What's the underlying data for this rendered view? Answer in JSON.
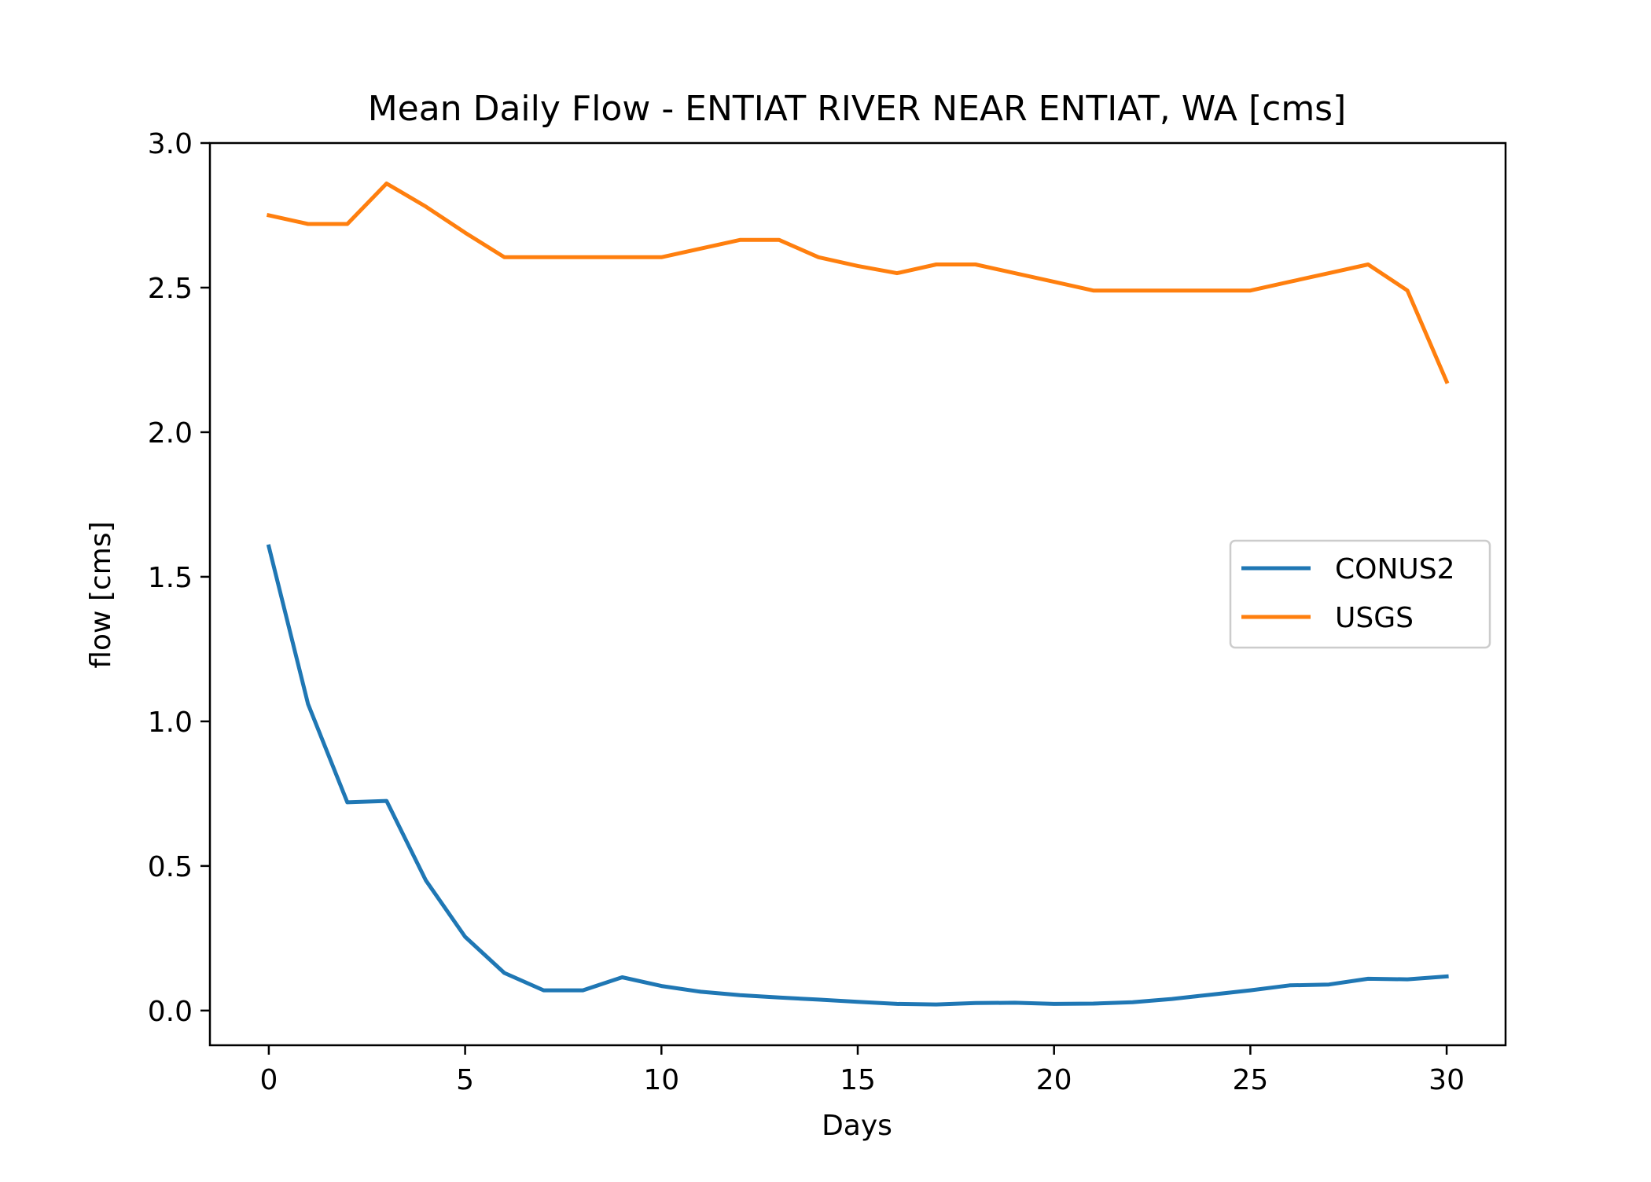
{
  "chart_data": {
    "type": "line",
    "title": "Mean Daily Flow - ENTIAT RIVER NEAR ENTIAT, WA [cms]",
    "xlabel": "Days",
    "ylabel": "flow [cms]",
    "xlim": [
      -1.5,
      31.5
    ],
    "ylim": [
      -0.12,
      3.0
    ],
    "xticks": [
      0,
      5,
      10,
      15,
      20,
      25,
      30
    ],
    "xtick_labels": [
      "0",
      "5",
      "10",
      "15",
      "20",
      "25",
      "30"
    ],
    "yticks": [
      0.0,
      0.5,
      1.0,
      1.5,
      2.0,
      2.5,
      3.0
    ],
    "ytick_labels": [
      "0.0",
      "0.5",
      "1.0",
      "1.5",
      "2.0",
      "2.5",
      "3.0"
    ],
    "grid": false,
    "legend_position": "center-right",
    "x": [
      0,
      1,
      2,
      3,
      4,
      5,
      6,
      7,
      8,
      9,
      10,
      11,
      12,
      13,
      14,
      15,
      16,
      17,
      18,
      19,
      20,
      21,
      22,
      23,
      24,
      25,
      26,
      27,
      28,
      29,
      30
    ],
    "series": [
      {
        "name": "CONUS2",
        "color": "#1f77b4",
        "values": [
          1.605,
          1.06,
          0.72,
          0.725,
          0.45,
          0.255,
          0.13,
          0.07,
          0.07,
          0.115,
          0.085,
          0.065,
          0.053,
          0.045,
          0.038,
          0.03,
          0.023,
          0.021,
          0.026,
          0.027,
          0.023,
          0.024,
          0.029,
          0.04,
          0.055,
          0.07,
          0.087,
          0.09,
          0.11,
          0.108,
          0.118
        ]
      },
      {
        "name": "USGS",
        "color": "#ff7f0e",
        "values": [
          2.75,
          2.72,
          2.72,
          2.86,
          2.78,
          2.69,
          2.605,
          2.605,
          2.605,
          2.605,
          2.605,
          2.635,
          2.665,
          2.665,
          2.605,
          2.575,
          2.55,
          2.58,
          2.58,
          2.55,
          2.52,
          2.49,
          2.49,
          2.49,
          2.49,
          2.49,
          2.52,
          2.55,
          2.58,
          2.49,
          2.175
        ]
      }
    ]
  }
}
